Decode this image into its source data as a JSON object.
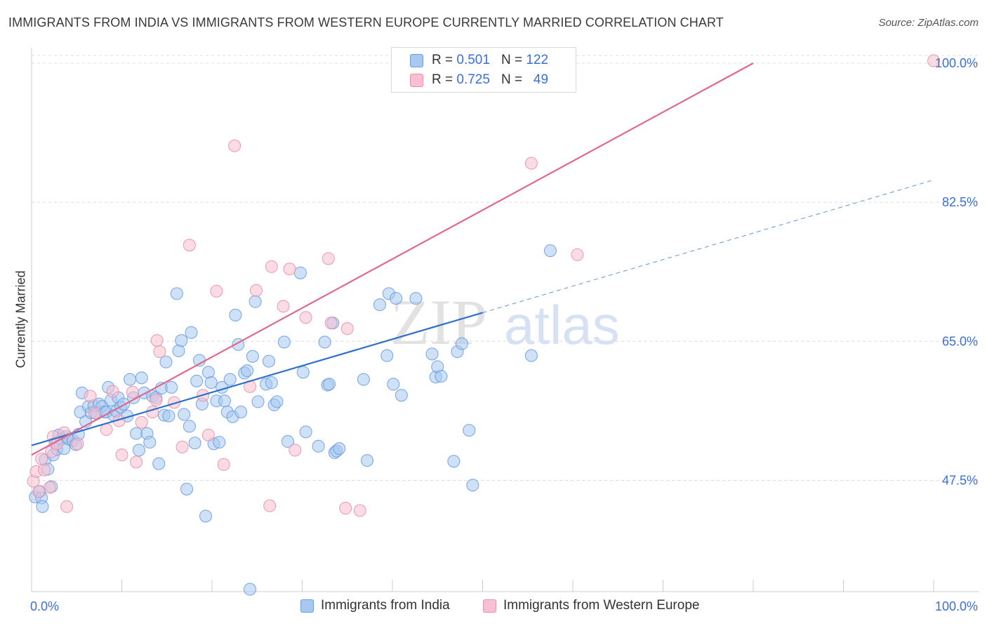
{
  "header": {
    "title": "IMMIGRANTS FROM INDIA VS IMMIGRANTS FROM WESTERN EUROPE CURRENTLY MARRIED CORRELATION CHART",
    "source": "Source: ZipAtlas.com"
  },
  "watermark": {
    "zip": "ZIP",
    "atlas": "atlas"
  },
  "legend": {
    "rows": [
      {
        "r_label": "R =",
        "r_value": "0.501",
        "n_label": "N =",
        "n_value": "122",
        "color": "#a8c8f0",
        "border": "#6a9ee0"
      },
      {
        "r_label": "R =",
        "r_value": "0.725",
        "n_label": "N =",
        "n_value": "49",
        "color": "#f8c0d0",
        "border": "#e890aa"
      }
    ]
  },
  "bottom_legend": {
    "india": "Immigrants from India",
    "western_europe": "Immigrants from Western Europe"
  },
  "chart_data": {
    "type": "scatter",
    "title": "IMMIGRANTS FROM INDIA VS IMMIGRANTS FROM WESTERN EUROPE CURRENTLY MARRIED CORRELATION CHART",
    "xlabel": "",
    "ylabel": "Currently Married",
    "xlim": [
      0,
      100
    ],
    "ylim": [
      33.5,
      101.5
    ],
    "x_tick_labels": [
      "0.0%",
      "100.0%"
    ],
    "y_ticks": [
      47.5,
      65.0,
      82.5,
      100.0
    ],
    "y_tick_labels": [
      "47.5%",
      "65.0%",
      "82.5%",
      "100.0%"
    ],
    "grid": true,
    "legend_position": "top-center",
    "series": [
      {
        "name": "Immigrants from India",
        "color": "#6a9ee0",
        "fill": "#a8c8f0",
        "line_color": "#2f6fcc",
        "trend": {
          "x": [
            0,
            50
          ],
          "y": [
            51.9,
            68.6
          ]
        },
        "trend_extension": {
          "x": [
            50,
            100
          ],
          "y": [
            68.6,
            85.3
          ]
        },
        "points": [
          [
            0.4,
            45.4
          ],
          [
            0.9,
            46.1
          ],
          [
            1.1,
            45.3
          ],
          [
            1.2,
            44.2
          ],
          [
            1.5,
            50.1
          ],
          [
            1.8,
            48.9
          ],
          [
            2.2,
            46.7
          ],
          [
            2.4,
            50.7
          ],
          [
            2.6,
            52.2
          ],
          [
            2.8,
            51.4
          ],
          [
            3.0,
            53.2
          ],
          [
            3.3,
            52.7
          ],
          [
            3.6,
            51.5
          ],
          [
            3.9,
            53.0
          ],
          [
            4.1,
            52.7
          ],
          [
            4.6,
            52.5
          ],
          [
            4.9,
            52.0
          ],
          [
            5.4,
            56.1
          ],
          [
            5.2,
            53.3
          ],
          [
            5.6,
            58.5
          ],
          [
            6.0,
            54.9
          ],
          [
            6.3,
            56.8
          ],
          [
            6.6,
            56.0
          ],
          [
            6.9,
            56.9
          ],
          [
            7.2,
            55.9
          ],
          [
            7.5,
            57.1
          ],
          [
            7.8,
            56.8
          ],
          [
            8.1,
            56.1
          ],
          [
            8.3,
            56.1
          ],
          [
            8.5,
            59.2
          ],
          [
            8.8,
            57.6
          ],
          [
            9.1,
            55.7
          ],
          [
            9.4,
            56.2
          ],
          [
            9.6,
            57.9
          ],
          [
            9.9,
            56.7
          ],
          [
            10.2,
            57.1
          ],
          [
            10.6,
            55.6
          ],
          [
            10.9,
            60.2
          ],
          [
            11.3,
            57.9
          ],
          [
            11.6,
            53.4
          ],
          [
            11.9,
            51.3
          ],
          [
            12.2,
            60.4
          ],
          [
            12.5,
            58.5
          ],
          [
            12.8,
            53.4
          ],
          [
            13.1,
            52.3
          ],
          [
            13.4,
            58.1
          ],
          [
            13.8,
            57.9
          ],
          [
            14.1,
            49.6
          ],
          [
            14.4,
            59.1
          ],
          [
            14.7,
            55.7
          ],
          [
            14.9,
            62.4
          ],
          [
            15.2,
            55.6
          ],
          [
            15.5,
            59.2
          ],
          [
            16.1,
            71.0
          ],
          [
            16.3,
            63.8
          ],
          [
            16.6,
            65.1
          ],
          [
            16.9,
            55.8
          ],
          [
            17.2,
            46.4
          ],
          [
            17.5,
            54.3
          ],
          [
            17.7,
            66.1
          ],
          [
            18.1,
            52.2
          ],
          [
            18.3,
            60.0
          ],
          [
            18.6,
            62.6
          ],
          [
            18.9,
            57.1
          ],
          [
            19.3,
            43.0
          ],
          [
            19.6,
            61.1
          ],
          [
            19.9,
            59.8
          ],
          [
            20.2,
            52.1
          ],
          [
            20.5,
            57.5
          ],
          [
            20.8,
            52.3
          ],
          [
            21.1,
            59.2
          ],
          [
            21.4,
            57.5
          ],
          [
            21.7,
            56.1
          ],
          [
            22.0,
            60.2
          ],
          [
            22.3,
            55.5
          ],
          [
            22.6,
            68.3
          ],
          [
            22.9,
            64.6
          ],
          [
            23.2,
            56.1
          ],
          [
            23.6,
            61.0
          ],
          [
            23.9,
            61.3
          ],
          [
            24.2,
            33.8
          ],
          [
            24.5,
            63.1
          ],
          [
            24.8,
            70.0
          ],
          [
            25.1,
            57.4
          ],
          [
            26.0,
            59.6
          ],
          [
            26.3,
            62.5
          ],
          [
            26.6,
            59.8
          ],
          [
            26.9,
            57.0
          ],
          [
            27.2,
            57.4
          ],
          [
            28.0,
            64.9
          ],
          [
            28.4,
            52.4
          ],
          [
            29.8,
            73.6
          ],
          [
            30.1,
            61.1
          ],
          [
            30.4,
            53.6
          ],
          [
            31.8,
            51.8
          ],
          [
            32.5,
            64.9
          ],
          [
            32.8,
            59.5
          ],
          [
            33.0,
            59.6
          ],
          [
            33.4,
            67.3
          ],
          [
            33.6,
            51.0
          ],
          [
            33.8,
            51.2
          ],
          [
            34.1,
            51.5
          ],
          [
            36.8,
            60.2
          ],
          [
            37.2,
            50.0
          ],
          [
            38.6,
            69.6
          ],
          [
            39.4,
            63.2
          ],
          [
            39.6,
            71.0
          ],
          [
            40.1,
            59.6
          ],
          [
            40.4,
            70.4
          ],
          [
            41.0,
            58.2
          ],
          [
            42.6,
            70.4
          ],
          [
            44.4,
            63.4
          ],
          [
            44.8,
            60.5
          ],
          [
            45.0,
            61.8
          ],
          [
            45.4,
            60.6
          ],
          [
            46.8,
            49.9
          ],
          [
            47.2,
            63.7
          ],
          [
            47.7,
            64.7
          ],
          [
            48.5,
            53.8
          ],
          [
            48.9,
            46.9
          ],
          [
            55.4,
            63.2
          ],
          [
            57.5,
            76.4
          ]
        ]
      },
      {
        "name": "Immigrants from Western Europe",
        "color": "#e890aa",
        "fill": "#f8c0d0",
        "line_color": "#e06890",
        "trend": {
          "x": [
            0,
            80
          ],
          "y": [
            50.7,
            100.0
          ]
        },
        "points": [
          [
            0.2,
            47.4
          ],
          [
            0.5,
            48.6
          ],
          [
            0.8,
            46.1
          ],
          [
            1.1,
            50.2
          ],
          [
            1.4,
            48.8
          ],
          [
            2.0,
            46.6
          ],
          [
            2.2,
            51.1
          ],
          [
            2.4,
            53.0
          ],
          [
            2.8,
            52.1
          ],
          [
            3.6,
            53.5
          ],
          [
            3.9,
            44.2
          ],
          [
            5.1,
            52.1
          ],
          [
            6.5,
            58.1
          ],
          [
            7.0,
            56.0
          ],
          [
            8.3,
            53.9
          ],
          [
            9.0,
            58.7
          ],
          [
            9.7,
            55.0
          ],
          [
            10.0,
            50.7
          ],
          [
            11.2,
            58.6
          ],
          [
            11.6,
            49.8
          ],
          [
            12.2,
            54.8
          ],
          [
            13.4,
            56.1
          ],
          [
            13.8,
            57.6
          ],
          [
            13.9,
            65.1
          ],
          [
            14.2,
            63.7
          ],
          [
            15.8,
            57.3
          ],
          [
            16.7,
            51.7
          ],
          [
            17.5,
            77.1
          ],
          [
            19.0,
            58.2
          ],
          [
            19.6,
            53.2
          ],
          [
            20.5,
            71.3
          ],
          [
            21.3,
            49.5
          ],
          [
            22.5,
            89.6
          ],
          [
            24.2,
            59.3
          ],
          [
            24.9,
            71.4
          ],
          [
            26.4,
            44.3
          ],
          [
            26.6,
            74.4
          ],
          [
            27.9,
            69.4
          ],
          [
            28.6,
            74.1
          ],
          [
            29.2,
            51.3
          ],
          [
            30.4,
            68.0
          ],
          [
            32.9,
            75.4
          ],
          [
            33.2,
            67.3
          ],
          [
            34.8,
            44.0
          ],
          [
            35.0,
            66.6
          ],
          [
            36.4,
            43.7
          ],
          [
            55.4,
            87.4
          ],
          [
            60.5,
            75.9
          ],
          [
            100.0,
            100.3
          ]
        ]
      }
    ]
  }
}
